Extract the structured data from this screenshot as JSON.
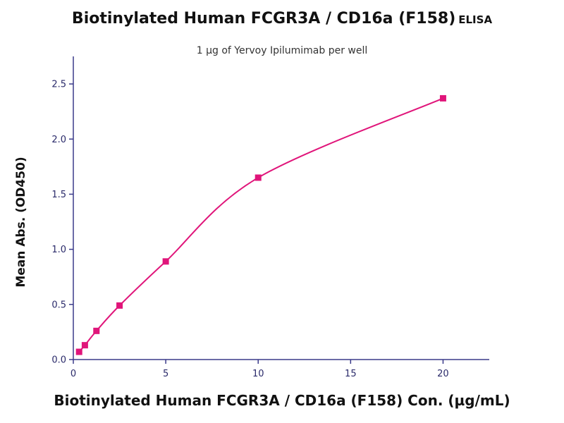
{
  "chart_data": {
    "type": "scatter",
    "title": "Biotinylated Human FCGR3A / CD16a (F158)",
    "title_suffix": "ELISA",
    "subtitle": "1 µg of Yervoy Ipilumimab per well",
    "xlabel": "Biotinylated Human FCGR3A / CD16a (F158) Con. (µg/mL)",
    "ylabel": "Mean Abs. (OD450)",
    "xlim": [
      0,
      22.5
    ],
    "ylim": [
      0,
      2.75
    ],
    "xticks": [
      "0",
      "5",
      "10",
      "15",
      "20"
    ],
    "yticks": [
      "0.0",
      "0.5",
      "1.0",
      "1.5",
      "2.0",
      "2.5"
    ],
    "grid": false,
    "legend": "none",
    "series": [
      {
        "color": "#e0157a",
        "x": [
          0.313,
          0.625,
          1.25,
          2.5,
          5,
          10,
          20
        ],
        "y": [
          0.07,
          0.13,
          0.26,
          0.49,
          0.89,
          1.65,
          2.37
        ],
        "fit_line": true
      }
    ]
  }
}
